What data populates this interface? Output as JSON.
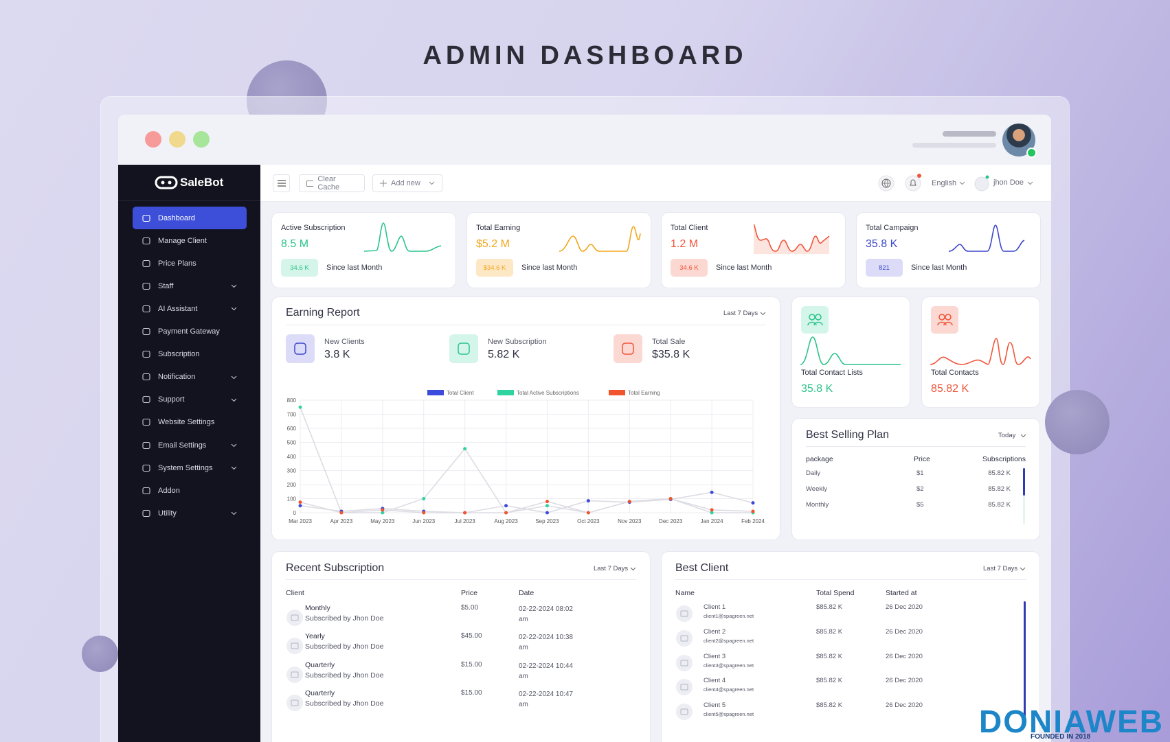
{
  "banner_title": "ADMIN DASHBOARD",
  "brand": "SaleBot",
  "sidebar": [
    {
      "label": "Dashboard",
      "active": true
    },
    {
      "label": "Manage Client"
    },
    {
      "label": "Price Plans"
    },
    {
      "label": "Staff",
      "submenu": true
    },
    {
      "label": "AI Assistant",
      "submenu": true
    },
    {
      "label": "Payment Gateway"
    },
    {
      "label": "Subscription"
    },
    {
      "label": "Notification",
      "submenu": true
    },
    {
      "label": "Support",
      "submenu": true
    },
    {
      "label": "Website Settings"
    },
    {
      "label": "Email Settings",
      "submenu": true
    },
    {
      "label": "System Settings",
      "submenu": true
    },
    {
      "label": "Addon"
    },
    {
      "label": "Utility",
      "submenu": true
    }
  ],
  "toolbar": {
    "clear_cache": "Clear Cache",
    "add_new": "Add new",
    "language": "English",
    "user": "jhon Doe"
  },
  "stats": [
    {
      "label": "Active Subscription",
      "value": "8.5 M",
      "badge": "34.6 K",
      "note": "Since last Month",
      "color": "#2bc48a",
      "tint": "#d6f5ea"
    },
    {
      "label": "Total Earning",
      "value": "$5.2 M",
      "badge": "$34.6 K",
      "note": "Since last Month",
      "color": "#f2a71b",
      "tint": "#fde8c6"
    },
    {
      "label": "Total Client",
      "value": "1.2 M",
      "badge": "34.6 K",
      "note": "Since last Month",
      "color": "#f0553b",
      "tint": "#fbd8d1"
    },
    {
      "label": "Total Campaign",
      "value": "35.8 K",
      "badge": "821",
      "note": "Since last Month",
      "color": "#3b46c9",
      "tint": "#dcdcf8"
    }
  ],
  "earning_report": {
    "title": "Earning Report",
    "range": "Last 7 Days",
    "kpis": [
      {
        "label": "New Clients",
        "value": "3.8 K",
        "tint": "#dcdcf8",
        "color": "#3b46c9"
      },
      {
        "label": "New Subscription",
        "value": "5.82 K",
        "tint": "#d4f5ea",
        "color": "#2bc48a"
      },
      {
        "label": "Total Sale",
        "value": "$35.8 K",
        "tint": "#fbd8d1",
        "color": "#f0553b"
      }
    ],
    "chart": {
      "type": "line",
      "categories": [
        "Mar 2023",
        "Apr 2023",
        "May 2023",
        "Jun 2023",
        "Jul 2023",
        "Aug 2023",
        "Sep 2023",
        "Oct 2023",
        "Nov 2023",
        "Dec 2023",
        "Jan 2024",
        "Feb 2024"
      ],
      "series": [
        {
          "name": "Total Client",
          "color": "#3b4bdb",
          "values": [
            50,
            10,
            30,
            10,
            0,
            50,
            0,
            85,
            75,
            95,
            145,
            70
          ]
        },
        {
          "name": "Total Active Subscriptions",
          "color": "#2fd3a0",
          "values": [
            750,
            0,
            0,
            100,
            455,
            0,
            50,
            0,
            80,
            100,
            0,
            0
          ]
        },
        {
          "name": "Total Earning",
          "color": "#f2542d",
          "values": [
            75,
            0,
            20,
            0,
            0,
            0,
            80,
            0,
            80,
            100,
            20,
            10
          ]
        }
      ],
      "ylim": [
        0,
        800
      ],
      "yticks": [
        0,
        100,
        200,
        300,
        400,
        500,
        600,
        700,
        800
      ],
      "grid": true,
      "line_color": "#dcdce3"
    }
  },
  "contact_cards": [
    {
      "label": "Total Contact Lists",
      "value": "35.8 K",
      "color": "#2bc48a",
      "tint": "#d4f5ea"
    },
    {
      "label": "Total Contacts",
      "value": "85.82 K",
      "color": "#f0553b",
      "tint": "#fbd8d1"
    }
  ],
  "best_selling": {
    "title": "Best Selling Plan",
    "range": "Today",
    "columns": [
      "package",
      "Price",
      "Subscriptions"
    ],
    "rows": [
      [
        "Daily",
        "$1",
        "85.82 K"
      ],
      [
        "Weekly",
        "$2",
        "85.82 K"
      ],
      [
        "Monthly",
        "$5",
        "85.82 K"
      ]
    ]
  },
  "recent": {
    "title": "Recent Subscription",
    "range": "Last 7 Days",
    "columns": [
      "Client",
      "Price",
      "Date"
    ],
    "rows": [
      {
        "plan": "Monthly",
        "by": "Subscribed by Jhon Doe",
        "price": "$5.00",
        "date": "02-22-2024 08:02 am"
      },
      {
        "plan": "Yearly",
        "by": "Subscribed by Jhon Doe",
        "price": "$45.00",
        "date": "02-22-2024 10:38 am"
      },
      {
        "plan": "Quarterly",
        "by": "Subscribed by Jhon Doe",
        "price": "$15.00",
        "date": "02-22-2024 10:44 am"
      },
      {
        "plan": "Quarterly",
        "by": "Subscribed by Jhon Doe",
        "price": "$15.00",
        "date": "02-22-2024 10:47 am"
      }
    ]
  },
  "best_client": {
    "title": "Best Client",
    "range": "Last 7 Days",
    "columns": [
      "Name",
      "Total Spend",
      "Started at"
    ],
    "rows": [
      {
        "name": "Client 1",
        "email": "client1@spagreen.net",
        "spend": "$85.82 K",
        "started": "26 Dec 2020"
      },
      {
        "name": "Client 2",
        "email": "client2@spagreen.net",
        "spend": "$85.82 K",
        "started": "26 Dec 2020"
      },
      {
        "name": "Client 3",
        "email": "client3@spagreen.net",
        "spend": "$85.82 K",
        "started": "26 Dec 2020"
      },
      {
        "name": "Client 4",
        "email": "client4@spagreen.net",
        "spend": "$85.82 K",
        "started": "26 Dec 2020"
      },
      {
        "name": "Client 5",
        "email": "client5@spagreen.net",
        "spend": "$85.82 K",
        "started": "26 Dec 2020"
      }
    ]
  },
  "watermark": {
    "name": "DONIAWEB",
    "tagline": "FOUNDED IN 2018"
  }
}
